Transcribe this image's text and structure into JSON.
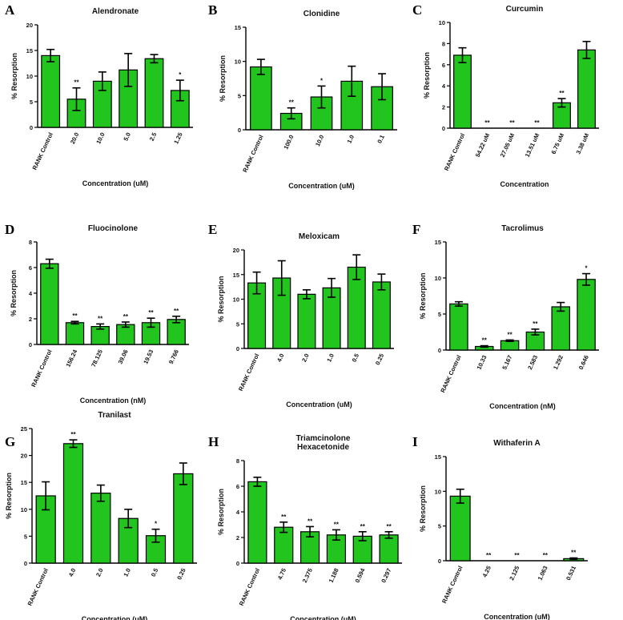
{
  "chart_data": [
    {
      "type": "bar",
      "letter": "A",
      "title": [
        "Alendronate"
      ],
      "ylabel": "% Resorption",
      "xlabel": "Concentration (uM)",
      "categories": [
        "RANK Control",
        "20.0",
        "10.0",
        "5.0",
        "2.5",
        "1.25"
      ],
      "values": [
        14.0,
        5.5,
        9.0,
        11.2,
        13.4,
        7.2
      ],
      "errors": [
        1.2,
        2.2,
        1.8,
        3.2,
        0.8,
        2.0
      ],
      "sig": [
        "",
        "**",
        "",
        "",
        "",
        "*"
      ],
      "ylim": [
        0,
        20
      ],
      "yticks": [
        0,
        5,
        10,
        15,
        20
      ],
      "color": "#22c41e"
    },
    {
      "type": "bar",
      "letter": "B",
      "title": [
        "Clonidine"
      ],
      "ylabel": "% Resorption",
      "xlabel": "Concentration (uM)",
      "categories": [
        "RANK Control",
        "100.0",
        "10.0",
        "1.0",
        "0.1"
      ],
      "values": [
        9.2,
        2.4,
        4.8,
        7.1,
        6.3
      ],
      "errors": [
        1.1,
        0.8,
        1.6,
        2.2,
        1.9
      ],
      "sig": [
        "",
        "**",
        "*",
        "",
        ""
      ],
      "ylim": [
        0,
        15
      ],
      "yticks": [
        0,
        5,
        10,
        15
      ],
      "color": "#22c41e"
    },
    {
      "type": "bar",
      "letter": "C",
      "title": [
        "Curcumin"
      ],
      "ylabel": "% Resorption",
      "xlabel": "Concentration",
      "categories": [
        "RANK Control",
        "54.22 uM",
        "27.05 uM",
        "13.51 uM",
        "6.75 uM",
        "3.38 uM"
      ],
      "values": [
        6.9,
        0,
        0,
        0,
        2.4,
        7.4
      ],
      "errors": [
        0.7,
        0,
        0,
        0,
        0.4,
        0.8
      ],
      "sig": [
        "",
        "**",
        "**",
        "**",
        "**",
        ""
      ],
      "ylim": [
        0,
        10
      ],
      "yticks": [
        0,
        2,
        4,
        6,
        8,
        10
      ],
      "color": "#22c41e"
    },
    {
      "type": "bar",
      "letter": "D",
      "title": [
        "Fluocinolone"
      ],
      "ylabel": "% Resorption",
      "xlabel": "Concentration (nM)",
      "categories": [
        "RANK Control",
        "156.24",
        "78.125",
        "39.06",
        "19.53",
        "9.766"
      ],
      "values": [
        6.3,
        1.7,
        1.4,
        1.55,
        1.7,
        1.95
      ],
      "errors": [
        0.35,
        0.1,
        0.2,
        0.2,
        0.35,
        0.25
      ],
      "sig": [
        "",
        "**",
        "**",
        "**",
        "**",
        "**"
      ],
      "ylim": [
        0,
        8
      ],
      "yticks": [
        0,
        2,
        4,
        6,
        8
      ],
      "color": "#22c41e"
    },
    {
      "type": "bar",
      "letter": "E",
      "title": [
        "Meloxicam"
      ],
      "ylabel": "% Resorption",
      "xlabel": "Concentration (uM)",
      "categories": [
        "RANK Control",
        "4.0",
        "2.0",
        "1.0",
        "0.5",
        "0.25"
      ],
      "values": [
        13.3,
        14.3,
        11.0,
        12.3,
        16.5,
        13.5
      ],
      "errors": [
        2.2,
        3.5,
        0.9,
        1.9,
        2.5,
        1.6
      ],
      "sig": [
        "",
        "",
        "",
        "",
        "",
        ""
      ],
      "ylim": [
        0,
        20
      ],
      "yticks": [
        0,
        5,
        10,
        15,
        20
      ],
      "color": "#22c41e"
    },
    {
      "type": "bar",
      "letter": "F",
      "title": [
        "Tacrolimus"
      ],
      "ylabel": "% Resorption",
      "xlabel": "Concentration (nM)",
      "categories": [
        "RANK Control",
        "10.33",
        "5.167",
        "2.583",
        "1.292",
        "0.646"
      ],
      "values": [
        6.4,
        0.5,
        1.3,
        2.5,
        6.0,
        9.8
      ],
      "errors": [
        0.3,
        0.1,
        0.1,
        0.4,
        0.6,
        0.8
      ],
      "sig": [
        "",
        "**",
        "**",
        "**",
        "",
        "*"
      ],
      "ylim": [
        0,
        15
      ],
      "yticks": [
        0,
        5,
        10,
        15
      ],
      "color": "#22c41e"
    },
    {
      "type": "bar",
      "letter": "G",
      "title": [
        "Tranilast"
      ],
      "ylabel": "% Resorption",
      "xlabel": "Concentration (uM)",
      "categories": [
        "RANK Control",
        "4.0",
        "2.0",
        "1.0",
        "0.5",
        "0.25"
      ],
      "values": [
        12.5,
        22.2,
        13.0,
        8.3,
        5.1,
        16.6
      ],
      "errors": [
        2.6,
        0.7,
        1.5,
        1.7,
        1.2,
        2.0
      ],
      "sig": [
        "",
        "**",
        "",
        "",
        "*",
        ""
      ],
      "ylim": [
        0,
        25
      ],
      "yticks": [
        0,
        5,
        10,
        15,
        20,
        25
      ],
      "color": "#22c41e"
    },
    {
      "type": "bar",
      "letter": "H",
      "title": [
        "Triamcinolone",
        "Hexacetonide"
      ],
      "ylabel": "% Resorption",
      "xlabel": "Concentration (uM)",
      "categories": [
        "RANK Control",
        "4.75",
        "2.375",
        "1.188",
        "0.594",
        "0.297"
      ],
      "values": [
        6.35,
        2.8,
        2.45,
        2.2,
        2.1,
        2.2
      ],
      "errors": [
        0.35,
        0.4,
        0.4,
        0.4,
        0.35,
        0.25
      ],
      "sig": [
        "",
        "**",
        "**",
        "**",
        "**",
        "**"
      ],
      "ylim": [
        0,
        8
      ],
      "yticks": [
        0,
        2,
        4,
        6,
        8
      ],
      "color": "#22c41e"
    },
    {
      "type": "bar",
      "letter": "I",
      "title": [
        "Withaferin A"
      ],
      "ylabel": "% Resorption",
      "xlabel": "Concentration (uM)",
      "categories": [
        "RANK Control",
        "4.25",
        "2.125",
        "1.063",
        "0.531"
      ],
      "values": [
        9.3,
        0,
        0,
        0,
        0.3
      ],
      "errors": [
        1.0,
        0,
        0,
        0,
        0.1
      ],
      "sig": [
        "",
        "**",
        "**",
        "**",
        "**"
      ],
      "ylim": [
        0,
        15
      ],
      "yticks": [
        0,
        5,
        10,
        15
      ],
      "color": "#22c41e"
    }
  ]
}
